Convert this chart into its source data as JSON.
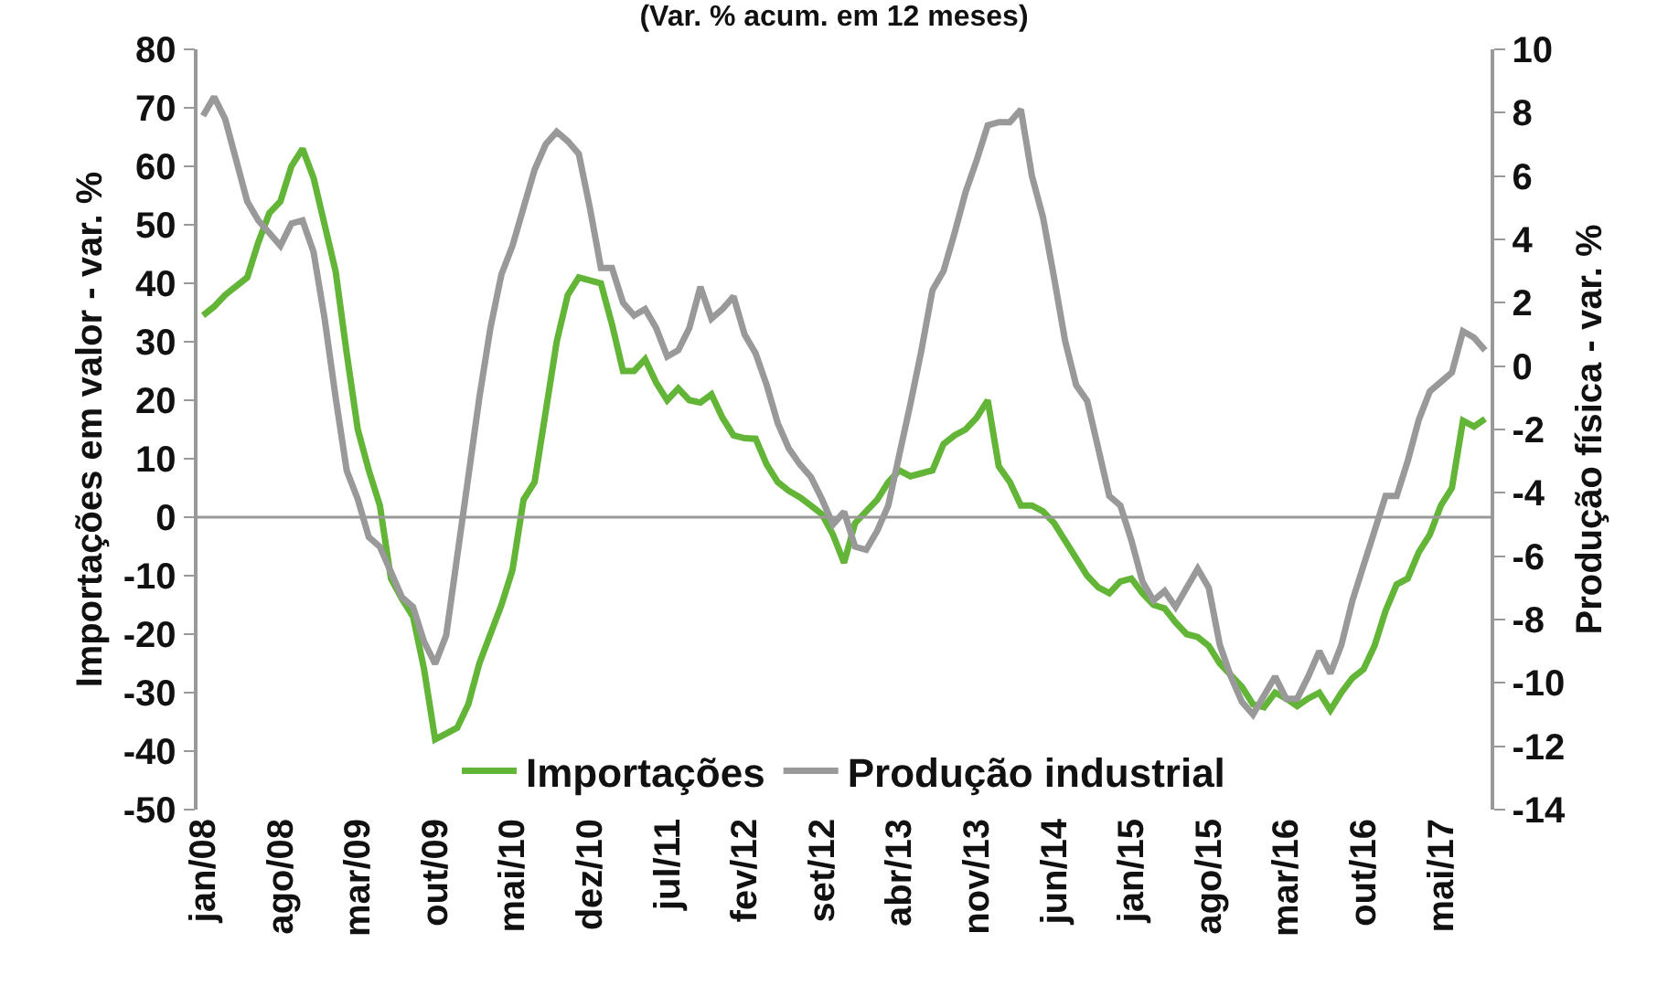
{
  "chart_data": {
    "type": "line",
    "title": "(Var. % acum. em 12 meses)",
    "ylabel": "Importações em valor - var. %",
    "y2label": "Produção física - var. %",
    "categories": [
      "jan/08",
      null,
      null,
      null,
      null,
      null,
      null,
      "ago/08",
      null,
      null,
      null,
      null,
      null,
      null,
      "mar/09",
      null,
      null,
      null,
      null,
      null,
      null,
      "out/09",
      null,
      null,
      null,
      null,
      null,
      null,
      "mai/10",
      null,
      null,
      null,
      null,
      null,
      null,
      "dez/10",
      null,
      null,
      null,
      null,
      null,
      null,
      "jul/11",
      null,
      null,
      null,
      null,
      null,
      null,
      "fev/12",
      null,
      null,
      null,
      null,
      null,
      null,
      "set/12",
      null,
      null,
      null,
      null,
      null,
      null,
      "abr/13",
      null,
      null,
      null,
      null,
      null,
      null,
      "nov/13",
      null,
      null,
      null,
      null,
      null,
      null,
      "jun/14",
      null,
      null,
      null,
      null,
      null,
      null,
      "jan/15",
      null,
      null,
      null,
      null,
      null,
      null,
      "ago/15",
      null,
      null,
      null,
      null,
      null,
      null,
      "mar/16",
      null,
      null,
      null,
      null,
      null,
      null,
      "out/16",
      null,
      null,
      null,
      null,
      null,
      null,
      "mai/17",
      null,
      null,
      null,
      null
    ],
    "series": [
      {
        "name": "Importações",
        "color": "#62b536",
        "values": [
          34.5,
          36,
          38,
          39.5,
          41,
          47,
          52,
          54,
          60,
          63,
          58,
          50,
          42,
          28,
          15,
          8,
          2,
          -10.5,
          -14,
          -17,
          -26,
          -38,
          -37,
          -36,
          -32,
          -25,
          -20,
          -15,
          -9,
          3,
          6,
          18,
          30,
          38,
          41,
          40.5,
          40,
          33,
          25,
          25,
          27,
          23,
          20,
          22,
          20,
          19.6,
          21,
          17,
          14,
          13.5,
          13.4,
          9,
          6,
          4.5,
          3.4,
          2,
          0.5,
          -3,
          -7.8,
          -1,
          1,
          3,
          6,
          8,
          7,
          7.5,
          8,
          12.5,
          14,
          15,
          17,
          20,
          8.7,
          6,
          2,
          2,
          1,
          -1,
          -4,
          -7,
          -10,
          -12,
          -13,
          -11,
          -10.5,
          -13,
          -15,
          -15.6,
          -18,
          -20,
          -20.5,
          -22,
          -25,
          -27,
          -29,
          -32,
          -32.5,
          -30,
          -31,
          -32.3,
          -31,
          -30,
          -33,
          -30,
          -27.5,
          -26,
          -22,
          -16,
          -11.5,
          -10.5,
          -6,
          -3,
          2,
          5,
          16.5,
          15.5,
          16.8
        ]
      },
      {
        "name": "Produção industrial",
        "color": "#999999",
        "axis": "y2",
        "values": [
          7.9,
          8.5,
          7.8,
          6.5,
          5.2,
          4.6,
          4.2,
          3.8,
          4.5,
          4.6,
          3.6,
          1.5,
          -1,
          -3.3,
          -4.2,
          -5.4,
          -5.7,
          -6.5,
          -7.3,
          -7.6,
          -8.7,
          -9.4,
          -8.5,
          -6,
          -3.5,
          -1,
          1.2,
          2.9,
          3.8,
          5,
          6.2,
          7,
          7.4,
          7.1,
          6.7,
          5,
          3.1,
          3.1,
          2,
          1.6,
          1.8,
          1.2,
          0.3,
          0.5,
          1.2,
          2.5,
          1.5,
          1.8,
          2.2,
          1,
          0.4,
          -0.6,
          -1.8,
          -2.6,
          -3.1,
          -3.5,
          -4.2,
          -5,
          -4.6,
          -5.7,
          -5.8,
          -5.2,
          -4.4,
          -2.8,
          -1.2,
          0.5,
          2.4,
          3,
          4.2,
          5.5,
          6.5,
          7.6,
          7.7,
          7.7,
          8.1,
          6,
          4.7,
          2.8,
          0.8,
          -0.6,
          -1.1,
          -2.6,
          -4.1,
          -4.4,
          -5.5,
          -6.8,
          -7.4,
          -7.1,
          -7.6,
          -7,
          -6.4,
          -7,
          -8.8,
          -9.8,
          -10.6,
          -11,
          -10.4,
          -9.8,
          -10.5,
          -10.5,
          -9.8,
          -9,
          -9.7,
          -8.8,
          -7.4,
          -6.3,
          -5.2,
          -4.1,
          -4.1,
          -3,
          -1.7,
          -0.8,
          -0.5,
          -0.2,
          1.1,
          0.9,
          0.5
        ]
      }
    ],
    "ylim": [
      -50,
      80
    ],
    "yticks": [
      -50,
      -40,
      -30,
      -20,
      -10,
      0,
      10,
      20,
      30,
      40,
      50,
      60,
      70,
      80
    ],
    "y2lim": [
      -14,
      10
    ],
    "y2ticks": [
      -14,
      -12,
      -10,
      -8,
      -6,
      -4,
      -2,
      0,
      2,
      4,
      6,
      8,
      10
    ],
    "ref_lines": [
      {
        "axis": "y",
        "value": 0,
        "color": "#999999"
      }
    ],
    "legend": "bottom",
    "marker": "none",
    "line_style": "solid"
  }
}
